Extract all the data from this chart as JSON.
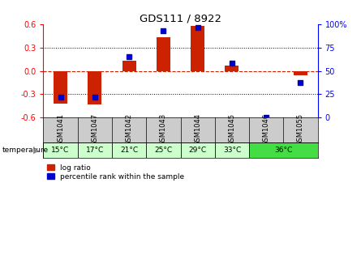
{
  "title": "GDS111 / 8922",
  "samples": [
    "GSM1041",
    "GSM1047",
    "GSM1042",
    "GSM1043",
    "GSM1044",
    "GSM1045",
    "GSM1046",
    "GSM1055"
  ],
  "log_ratio": [
    -0.42,
    -0.43,
    0.13,
    0.43,
    0.58,
    0.07,
    0.0,
    -0.06
  ],
  "percentile": [
    22,
    22,
    65,
    93,
    97,
    58,
    0,
    37
  ],
  "ylim": [
    -0.6,
    0.6
  ],
  "yticks_left": [
    -0.6,
    -0.3,
    0.0,
    0.3,
    0.6
  ],
  "yticks_right": [
    0,
    25,
    50,
    75,
    100
  ],
  "bar_color": "#cc2200",
  "dot_color": "#0000cc",
  "zero_line_color": "#cc2200",
  "grid_color": "#000000",
  "bg_color": "#ffffff",
  "plot_bg": "#ffffff",
  "light_green": "#ccffcc",
  "bright_green": "#44dd44",
  "gsm_bg": "#cccccc",
  "legend_red": "log ratio",
  "legend_blue": "percentile rank within the sample",
  "temp_label": "temperature",
  "temp_groups": [
    {
      "label": "15°C",
      "indices": [
        0
      ],
      "bright": false
    },
    {
      "label": "17°C",
      "indices": [
        1
      ],
      "bright": false
    },
    {
      "label": "21°C",
      "indices": [
        2
      ],
      "bright": false
    },
    {
      "label": "25°C",
      "indices": [
        3
      ],
      "bright": false
    },
    {
      "label": "29°C",
      "indices": [
        4
      ],
      "bright": false
    },
    {
      "label": "33°C",
      "indices": [
        5
      ],
      "bright": false
    },
    {
      "label": "36°C",
      "indices": [
        6,
        7
      ],
      "bright": true
    }
  ]
}
